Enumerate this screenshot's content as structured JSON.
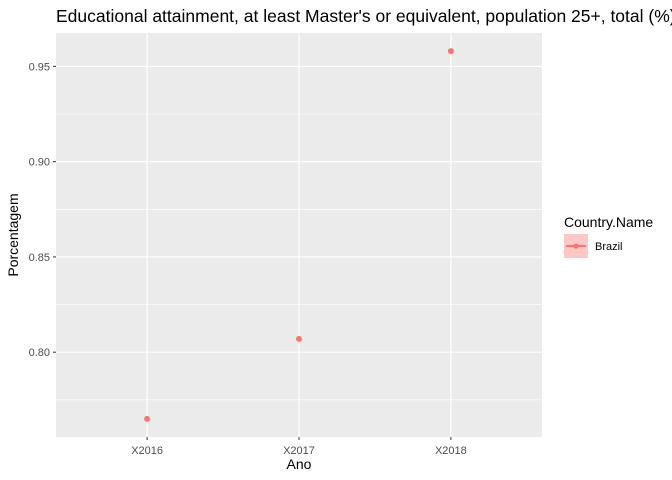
{
  "chart_data": {
    "type": "scatter",
    "title": "Educational attainment, at least Master's or equivalent, population 25+, total (%) (cumulative)",
    "xlabel": "Ano",
    "ylabel": "Porcentagem",
    "categories": [
      "X2016",
      "X2017",
      "X2018"
    ],
    "yticks": [
      "0.80",
      "0.85",
      "0.90",
      "0.95"
    ],
    "yticks_values": [
      0.8,
      0.85,
      0.9,
      0.95
    ],
    "ylim": [
      0.7555,
      0.9675
    ],
    "grid": true,
    "legend": {
      "title": "Country.Name",
      "placement": "right"
    },
    "series": [
      {
        "name": "Brazil",
        "color": "#F8766D",
        "values": [
          0.765,
          0.807,
          0.958
        ]
      }
    ]
  }
}
